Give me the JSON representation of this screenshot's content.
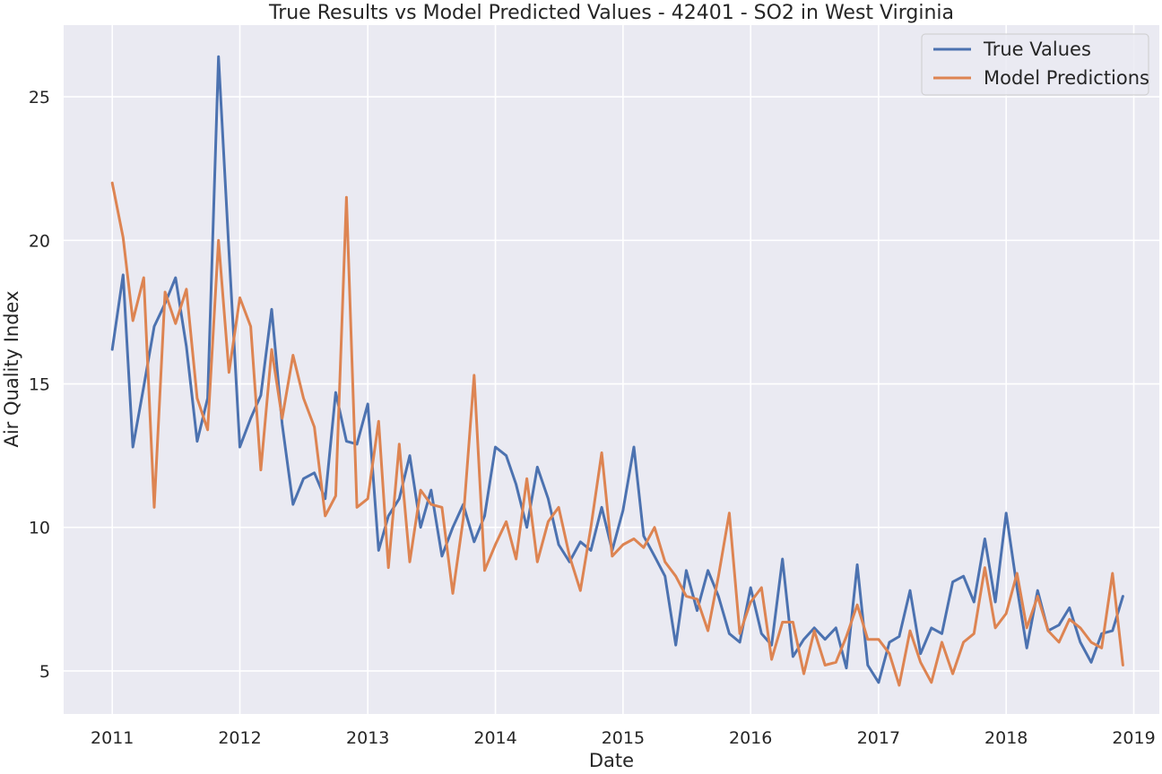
{
  "chart_data": {
    "type": "line",
    "title": "True Results vs Model Predicted Values - 42401 - SO2 in West Virginia",
    "xlabel": "Date",
    "ylabel": "Air Quality Index",
    "x_ticks": [
      "2011",
      "2012",
      "2013",
      "2014",
      "2015",
      "2016",
      "2017",
      "2018",
      "2019"
    ],
    "y_ticks": [
      5,
      10,
      15,
      20,
      25
    ],
    "xlim": [
      "2010-08-15",
      "2019-03-15"
    ],
    "ylim": [
      3.5,
      27.5
    ],
    "grid": true,
    "legend_position": "top-right",
    "colors": {
      "background": "#eaeaf2",
      "grid": "#ffffff",
      "true": "#4c72b0",
      "pred": "#dd8452"
    },
    "x": [
      "2011-01",
      "2011-02",
      "2011-03",
      "2011-04",
      "2011-05",
      "2011-06",
      "2011-07",
      "2011-08",
      "2011-09",
      "2011-10",
      "2011-11",
      "2011-12",
      "2012-01",
      "2012-02",
      "2012-03",
      "2012-04",
      "2012-05",
      "2012-06",
      "2012-07",
      "2012-08",
      "2012-09",
      "2012-10",
      "2012-11",
      "2012-12",
      "2013-01",
      "2013-02",
      "2013-03",
      "2013-04",
      "2013-05",
      "2013-06",
      "2013-07",
      "2013-08",
      "2013-09",
      "2013-10",
      "2013-11",
      "2013-12",
      "2014-01",
      "2014-02",
      "2014-03",
      "2014-04",
      "2014-05",
      "2014-06",
      "2014-07",
      "2014-08",
      "2014-09",
      "2014-10",
      "2014-11",
      "2014-12",
      "2015-01",
      "2015-02",
      "2015-03",
      "2015-04",
      "2015-05",
      "2015-06",
      "2015-07",
      "2015-08",
      "2015-09",
      "2015-10",
      "2015-11",
      "2015-12",
      "2016-01",
      "2016-02",
      "2016-03",
      "2016-04",
      "2016-05",
      "2016-06",
      "2016-07",
      "2016-08",
      "2016-09",
      "2016-10",
      "2016-11",
      "2016-12",
      "2017-01",
      "2017-02",
      "2017-03",
      "2017-04",
      "2017-05",
      "2017-06",
      "2017-07",
      "2017-08",
      "2017-09",
      "2017-10",
      "2017-11",
      "2017-12",
      "2018-01",
      "2018-02",
      "2018-03",
      "2018-04",
      "2018-05",
      "2018-06",
      "2018-07",
      "2018-08",
      "2018-09",
      "2018-10",
      "2018-11",
      "2018-12"
    ],
    "series": [
      {
        "name": "True Values",
        "values": [
          16.2,
          18.8,
          12.8,
          14.9,
          17.0,
          17.8,
          18.7,
          16.3,
          13.0,
          14.5,
          26.4,
          19.6,
          12.8,
          13.8,
          14.6,
          17.6,
          13.6,
          10.8,
          11.7,
          11.9,
          11.0,
          14.7,
          13.0,
          12.9,
          14.3,
          9.2,
          10.4,
          11.0,
          12.5,
          10.0,
          11.3,
          9.0,
          10.0,
          10.8,
          9.5,
          10.4,
          12.8,
          12.5,
          11.5,
          10.0,
          12.1,
          11.0,
          9.4,
          8.8,
          9.5,
          9.2,
          10.7,
          9.2,
          10.6,
          12.8,
          9.7,
          9.0,
          8.3,
          5.9,
          8.5,
          7.1,
          8.5,
          7.6,
          6.3,
          6.0,
          7.9,
          6.3,
          5.9,
          8.9,
          5.5,
          6.1,
          6.5,
          6.1,
          6.5,
          5.1,
          8.7,
          5.2,
          4.6,
          6.0,
          6.2,
          7.8,
          5.6,
          6.5,
          6.3,
          8.1,
          8.3,
          7.4,
          9.6,
          7.4,
          10.5,
          7.9,
          5.8,
          7.8,
          6.4,
          6.6,
          7.2,
          6.0,
          5.3,
          6.3,
          6.4,
          7.6
        ]
      },
      {
        "name": "Model Predictions",
        "values": [
          22.0,
          20.1,
          17.2,
          18.7,
          10.7,
          18.2,
          17.1,
          18.3,
          14.5,
          13.4,
          20.0,
          15.4,
          18.0,
          17.0,
          12.0,
          16.2,
          13.8,
          16.0,
          14.5,
          13.5,
          10.4,
          11.1,
          21.5,
          10.7,
          11.0,
          13.7,
          8.6,
          12.9,
          8.8,
          11.3,
          10.8,
          10.7,
          7.7,
          10.3,
          15.3,
          8.5,
          9.4,
          10.2,
          8.9,
          11.7,
          8.8,
          10.2,
          10.7,
          9.0,
          7.8,
          10.0,
          12.6,
          9.0,
          9.4,
          9.6,
          9.3,
          10.0,
          8.8,
          8.3,
          7.6,
          7.5,
          6.4,
          8.3,
          10.5,
          6.3,
          7.4,
          7.9,
          5.4,
          6.7,
          6.7,
          4.9,
          6.4,
          5.2,
          5.3,
          6.2,
          7.3,
          6.1,
          6.1,
          5.6,
          4.5,
          6.4,
          5.3,
          4.6,
          6.0,
          4.9,
          6.0,
          6.3,
          8.6,
          6.5,
          7.0,
          8.4,
          6.5,
          7.6,
          6.4,
          6.0,
          6.8,
          6.5,
          6.0,
          5.8,
          8.4,
          5.2
        ]
      }
    ]
  }
}
